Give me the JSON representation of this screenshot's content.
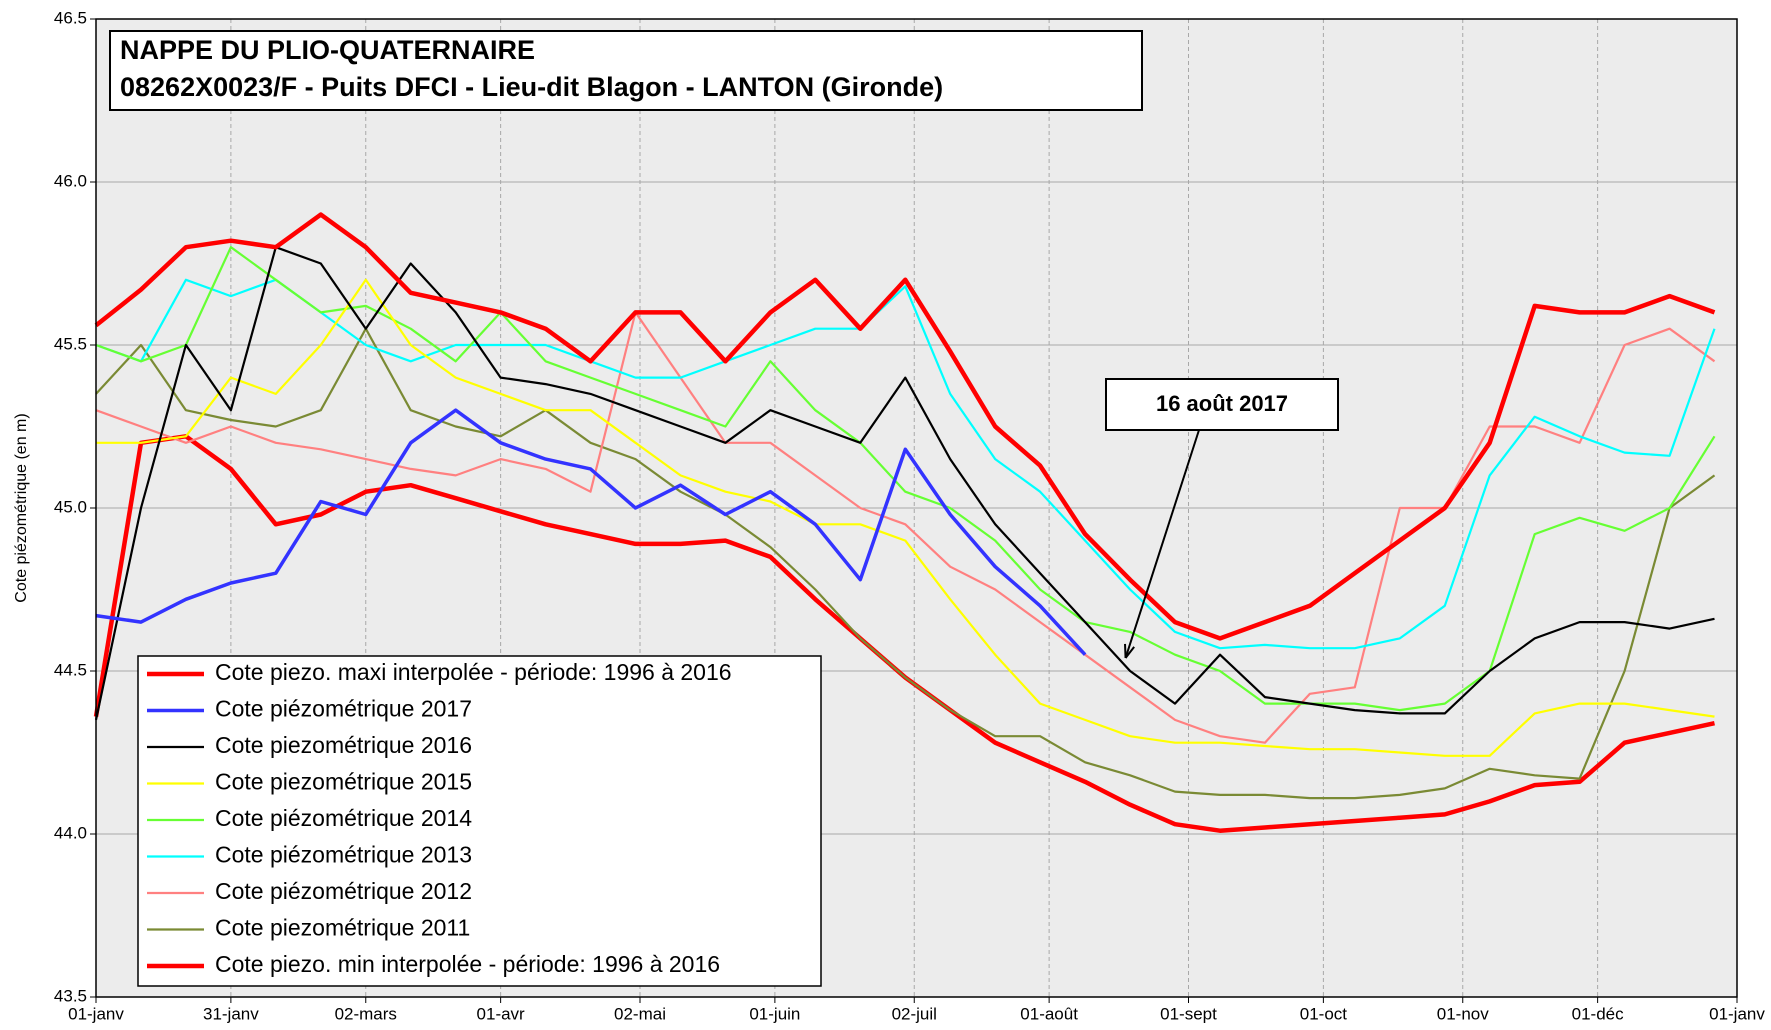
{
  "chart_data": {
    "type": "line",
    "title": [
      "NAPPE DU PLIO-QUATERNAIRE",
      "08262X0023/F - Puits DFCI - Lieu-dit Blagon - LANTON (Gironde)"
    ],
    "y_label": "Cote piézométrique (en m)",
    "xlim": [
      0,
      365
    ],
    "xticks": [
      {
        "value": 0,
        "label": "01-janv"
      },
      {
        "value": 30,
        "label": "31-janv"
      },
      {
        "value": 60,
        "label": "02-mars"
      },
      {
        "value": 90,
        "label": "01-avr"
      },
      {
        "value": 121,
        "label": "02-mai"
      },
      {
        "value": 151,
        "label": "01-juin"
      },
      {
        "value": 182,
        "label": "02-juil"
      },
      {
        "value": 212,
        "label": "01-août"
      },
      {
        "value": 243,
        "label": "01-sept"
      },
      {
        "value": 273,
        "label": "01-oct"
      },
      {
        "value": 304,
        "label": "01-nov"
      },
      {
        "value": 334,
        "label": "01-déc"
      },
      {
        "value": 365,
        "label": "01-janv"
      }
    ],
    "ylim": [
      43.5,
      46.5
    ],
    "yticks": [
      43.5,
      {
        "value": 44,
        "label": "44.0"
      },
      44.5,
      {
        "value": 45,
        "label": "45.0"
      },
      45.5,
      {
        "value": 46,
        "label": "46.0"
      },
      46.5
    ],
    "grid": true,
    "x": [
      0,
      10,
      20,
      30,
      40,
      50,
      60,
      70,
      80,
      90,
      100,
      110,
      120,
      130,
      140,
      150,
      160,
      170,
      180,
      190,
      200,
      210,
      220,
      230,
      240,
      250,
      260,
      270,
      280,
      290,
      300,
      310,
      320,
      330,
      340,
      350,
      360
    ],
    "series": [
      {
        "name": "Cote piezo. maxi interpolée - période: 1996 à 2016",
        "color": "#ff0000",
        "width": 4.5,
        "values": [
          45.56,
          45.67,
          45.8,
          45.82,
          45.8,
          45.9,
          45.8,
          45.66,
          45.63,
          45.6,
          45.55,
          45.45,
          45.6,
          45.6,
          45.45,
          45.6,
          45.7,
          45.55,
          45.7,
          45.48,
          45.25,
          45.13,
          44.92,
          44.78,
          44.65,
          44.6,
          44.65,
          44.7,
          44.8,
          44.9,
          45.0,
          45.2,
          45.62,
          45.6,
          45.6,
          45.65,
          45.6
        ]
      },
      {
        "name": "Cote piézométrique 2017",
        "color": "#3333ff",
        "width": 3.5,
        "values": [
          44.67,
          44.65,
          44.72,
          44.77,
          44.8,
          45.02,
          44.98,
          45.2,
          45.3,
          45.2,
          45.15,
          45.12,
          45.0,
          45.07,
          44.98,
          45.05,
          44.95,
          44.78,
          45.18,
          44.98,
          44.82,
          44.7,
          44.55,
          null,
          null,
          null,
          null,
          null,
          null,
          null,
          null,
          null,
          null,
          null,
          null,
          null,
          null
        ]
      },
      {
        "name": "Cote piezométrique 2016",
        "color": "#000000",
        "width": 2.2,
        "values": [
          44.35,
          45.0,
          45.5,
          45.3,
          45.8,
          45.75,
          45.55,
          45.75,
          45.6,
          45.4,
          45.38,
          45.35,
          45.3,
          45.25,
          45.2,
          45.3,
          45.25,
          45.2,
          45.4,
          45.15,
          44.95,
          44.8,
          44.65,
          44.5,
          44.4,
          44.55,
          44.42,
          44.4,
          44.38,
          44.37,
          44.37,
          44.5,
          44.6,
          44.65,
          44.65,
          44.63,
          44.66
        ]
      },
      {
        "name": "Cote piezométrique 2015",
        "color": "#ffff00",
        "width": 2.2,
        "values": [
          45.2,
          45.2,
          45.22,
          45.4,
          45.35,
          45.5,
          45.7,
          45.5,
          45.4,
          45.35,
          45.3,
          45.3,
          45.2,
          45.1,
          45.05,
          45.02,
          44.95,
          44.95,
          44.9,
          44.72,
          44.55,
          44.4,
          44.35,
          44.3,
          44.28,
          44.28,
          44.27,
          44.26,
          44.26,
          44.25,
          44.24,
          44.24,
          44.37,
          44.4,
          44.4,
          44.38,
          44.36
        ]
      },
      {
        "name": "Cote piézométrique 2014",
        "color": "#66ff33",
        "width": 2.2,
        "values": [
          45.5,
          45.45,
          45.5,
          45.8,
          45.7,
          45.6,
          45.62,
          45.55,
          45.45,
          45.6,
          45.45,
          45.4,
          45.35,
          45.3,
          45.25,
          45.45,
          45.3,
          45.2,
          45.05,
          45.0,
          44.9,
          44.75,
          44.65,
          44.62,
          44.55,
          44.5,
          44.4,
          44.4,
          44.4,
          44.38,
          44.4,
          44.5,
          44.92,
          44.97,
          44.93,
          45.0,
          45.22
        ]
      },
      {
        "name": "Cote piézométrique 2013",
        "color": "#00ffff",
        "width": 2.2,
        "values": [
          45.5,
          45.45,
          45.7,
          45.65,
          45.7,
          45.6,
          45.5,
          45.45,
          45.5,
          45.5,
          45.5,
          45.45,
          45.4,
          45.4,
          45.45,
          45.5,
          45.55,
          45.55,
          45.68,
          45.35,
          45.15,
          45.05,
          44.9,
          44.75,
          44.62,
          44.57,
          44.58,
          44.57,
          44.57,
          44.6,
          44.7,
          45.1,
          45.28,
          45.22,
          45.17,
          45.16,
          45.55
        ]
      },
      {
        "name": "Cote piézométrique 2012",
        "color": "#ff8080",
        "width": 2.2,
        "values": [
          45.3,
          45.25,
          45.2,
          45.25,
          45.2,
          45.18,
          45.15,
          45.12,
          45.1,
          45.15,
          45.12,
          45.05,
          45.6,
          45.4,
          45.2,
          45.2,
          45.1,
          45.0,
          44.95,
          44.82,
          44.75,
          44.65,
          44.55,
          44.45,
          44.35,
          44.3,
          44.28,
          44.43,
          44.45,
          45.0,
          45.0,
          45.25,
          45.25,
          45.2,
          45.5,
          45.55,
          45.45
        ]
      },
      {
        "name": "Cote piezométrique 2011",
        "color": "#7a8a34",
        "width": 2.2,
        "values": [
          45.35,
          45.5,
          45.3,
          45.27,
          45.25,
          45.3,
          45.55,
          45.3,
          45.25,
          45.22,
          45.3,
          45.2,
          45.15,
          45.05,
          44.98,
          44.88,
          44.75,
          44.6,
          44.48,
          44.38,
          44.3,
          44.3,
          44.22,
          44.18,
          44.13,
          44.12,
          44.12,
          44.11,
          44.11,
          44.12,
          44.14,
          44.2,
          44.18,
          44.17,
          44.5,
          45.0,
          45.1
        ]
      },
      {
        "name": "Cote piezo. min interpolée - période: 1996 à 2016",
        "color": "#ff0000",
        "width": 4.5,
        "values": [
          44.36,
          45.2,
          45.22,
          45.12,
          44.95,
          44.98,
          45.05,
          45.07,
          45.03,
          44.99,
          44.95,
          44.92,
          44.89,
          44.89,
          44.9,
          44.85,
          44.72,
          44.6,
          44.48,
          44.38,
          44.28,
          44.22,
          44.16,
          44.09,
          44.03,
          44.01,
          44.02,
          44.03,
          44.04,
          44.05,
          44.06,
          44.1,
          44.15,
          44.16,
          44.28,
          44.31,
          44.34
        ]
      }
    ],
    "annotations": [
      {
        "text": "16 août 2017",
        "x": 229,
        "y": 44.54
      }
    ]
  }
}
